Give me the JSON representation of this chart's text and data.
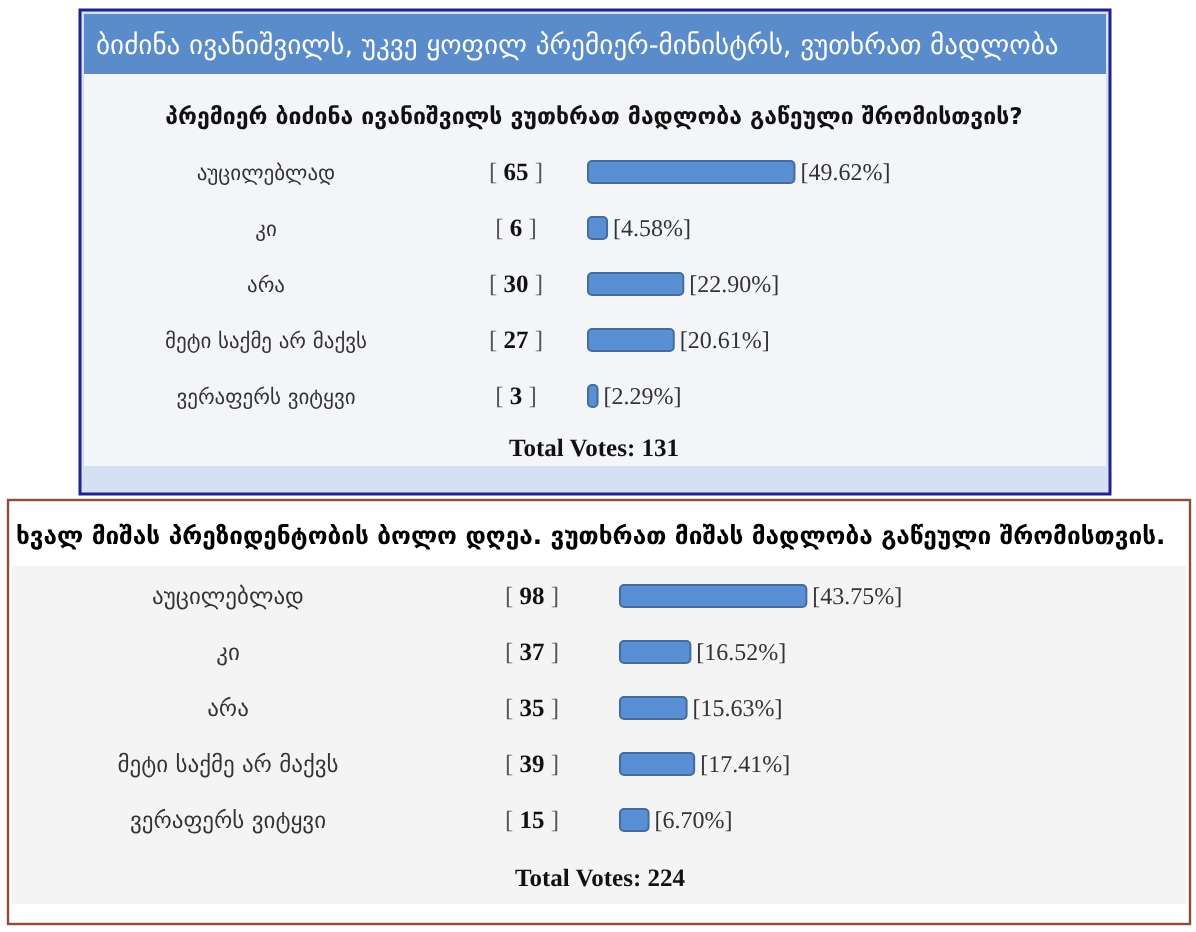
{
  "chart_data": [
    {
      "type": "bar",
      "orientation": "horizontal",
      "title": "ბიძინა ივანიშვილს, უკვე ყოფილ პრემიერ-მინისტრს, ვუთხრათ მადლობა",
      "subtitle": "პრემიერ ბიძინა ივანიშვილს ვუთხრათ მადლობა გაწეული შრომისთვის?",
      "categories": [
        "აუცილებლად",
        "კი",
        "არა",
        "მეტი საქმე არ მაქვს",
        "ვერაფერს ვიტყვი"
      ],
      "values": [
        49.62,
        4.58,
        22.9,
        20.61,
        2.29
      ],
      "value_labels": [
        "[49.62%]",
        "[4.58%]",
        "[22.90%]",
        "[20.61%]",
        "[2.29%]"
      ],
      "color": "#5b8fd3",
      "tick_labels": "y",
      "annotations": [
        "[ 65 ]",
        "[ 6 ]",
        "[ 30 ]",
        "[ 27 ]",
        "[ 3 ]",
        "Total Votes: 131"
      ]
    },
    {
      "type": "bar",
      "orientation": "horizontal",
      "title": "ხვალ მიშას პრეზიდენტობის ბოლო დღეა. ვუთხრათ მიშას მადლობა გაწეული შრომისთვის.",
      "categories": [
        "აუცილებლად",
        "კი",
        "არა",
        "მეტი საქმე არ მაქვს",
        "ვერაფერს ვიტყვი"
      ],
      "values": [
        43.75,
        16.52,
        15.63,
        17.41,
        6.7
      ],
      "value_labels": [
        "[43.75%]",
        "[16.52%]",
        "[15.63%]",
        "[17.41%]",
        "[6.70%]"
      ],
      "color": "#5b8fd3",
      "tick_labels": "y",
      "annotations": [
        "[ 98 ]",
        "[ 37 ]",
        "[ 35 ]",
        "[ 39 ]",
        "[ 15 ]",
        "Total Votes: 224"
      ]
    }
  ]
}
